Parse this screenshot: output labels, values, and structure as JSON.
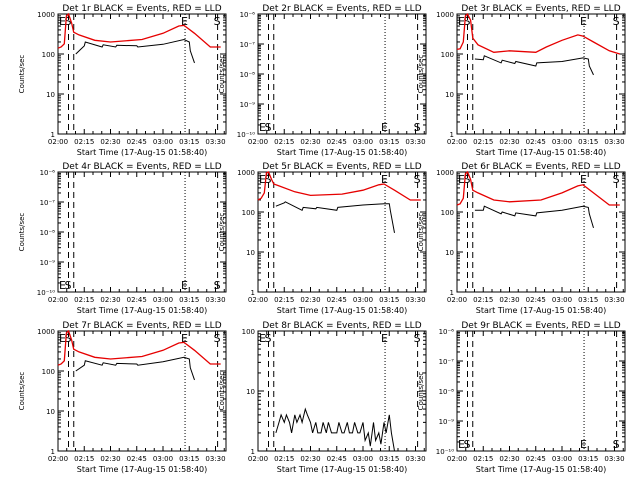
{
  "figure": {
    "xlabel": "Start Time (17-Aug-15 01:58:40)",
    "ylabel": "Counts/sec",
    "x_ticks": [
      "02:00",
      "02:15",
      "02:30",
      "02:45",
      "03:00",
      "03:15",
      "03:30"
    ],
    "colors": {
      "events": "#000000",
      "lld": "#e60000",
      "frame": "#000000"
    }
  },
  "chart_data": [
    {
      "type": "line",
      "title": "Det 1r BLACK = Events, RED = LLD",
      "y_scale": "log",
      "ylim": [
        1,
        1000
      ],
      "y_ticks": [
        {
          "v": 1,
          "t": "1"
        },
        {
          "v": 10,
          "t": "10"
        },
        {
          "v": 100,
          "t": "100"
        },
        {
          "v": 1000,
          "t": "1000"
        }
      ],
      "markers": [
        {
          "label": "E",
          "x": 2.0,
          "style": "dashed"
        },
        {
          "label": "S",
          "x": 2.1,
          "style": "dashed"
        },
        {
          "label": "",
          "x": 2.15,
          "style": "dashed"
        },
        {
          "label": "E",
          "x": 3.21,
          "style": "dotted"
        },
        {
          "label": "S",
          "x": 3.52,
          "style": "dashed"
        }
      ],
      "series": [
        {
          "role": "lld",
          "x": [
            2.0,
            2.03,
            2.06,
            2.08,
            2.1,
            2.13,
            2.15,
            2.2,
            2.35,
            2.5,
            2.8,
            3.0,
            3.15,
            3.2,
            3.3,
            3.45,
            3.55
          ],
          "y": [
            140,
            150,
            180,
            900,
            1000,
            600,
            350,
            300,
            220,
            200,
            230,
            330,
            500,
            520,
            330,
            150,
            150
          ]
        },
        {
          "role": "events",
          "x": [
            2.17,
            2.25,
            2.26,
            2.42,
            2.43,
            2.55,
            2.56,
            2.75,
            2.76,
            3.0,
            3.2,
            3.25,
            3.26,
            3.3
          ],
          "y": [
            100,
            160,
            200,
            150,
            170,
            150,
            165,
            160,
            150,
            175,
            230,
            200,
            120,
            60
          ]
        }
      ]
    },
    {
      "type": "line",
      "title": "Det 2r BLACK = Events, RED = LLD",
      "y_scale": "log",
      "ylim": [
        1e-10,
        1e-06
      ],
      "y_ticks": [
        {
          "v": 1e-10,
          "t": "10⁻¹⁰"
        },
        {
          "v": 1e-09,
          "t": "10⁻⁹"
        },
        {
          "v": 1e-08,
          "t": "10⁻⁸"
        },
        {
          "v": 1e-07,
          "t": "10⁻⁷"
        },
        {
          "v": 1e-06,
          "t": "10⁻⁶"
        }
      ],
      "markers": [
        {
          "label": "E",
          "x": 2.0,
          "style": "dashed"
        },
        {
          "label": "S",
          "x": 2.1,
          "style": "dashed"
        },
        {
          "label": "",
          "x": 2.15,
          "style": "dashed"
        },
        {
          "label": "E",
          "x": 3.21,
          "style": "dotted"
        },
        {
          "label": "S",
          "x": 3.52,
          "style": "dashed"
        }
      ],
      "series": []
    },
    {
      "type": "line",
      "title": "Det 3r BLACK = Events, RED = LLD",
      "y_scale": "log",
      "ylim": [
        1,
        1000
      ],
      "y_ticks": [
        {
          "v": 1,
          "t": "1"
        },
        {
          "v": 10,
          "t": "10"
        },
        {
          "v": 100,
          "t": "100"
        },
        {
          "v": 1000,
          "t": "1000"
        }
      ],
      "markers": [
        {
          "label": "E",
          "x": 2.0,
          "style": "dashed"
        },
        {
          "label": "S",
          "x": 2.1,
          "style": "dashed"
        },
        {
          "label": "",
          "x": 2.15,
          "style": "dashed"
        },
        {
          "label": "E",
          "x": 3.21,
          "style": "dotted"
        },
        {
          "label": "S",
          "x": 3.52,
          "style": "dashed"
        }
      ],
      "series": [
        {
          "role": "lld",
          "x": [
            2.0,
            2.03,
            2.06,
            2.08,
            2.1,
            2.13,
            2.15,
            2.2,
            2.35,
            2.5,
            2.75,
            2.85,
            3.0,
            3.15,
            3.2,
            3.3,
            3.45,
            3.55
          ],
          "y": [
            130,
            135,
            200,
            900,
            1000,
            700,
            250,
            170,
            110,
            120,
            110,
            150,
            220,
            300,
            280,
            200,
            120,
            100
          ]
        },
        {
          "role": "events",
          "x": [
            2.17,
            2.25,
            2.26,
            2.42,
            2.43,
            2.55,
            2.56,
            2.75,
            2.76,
            3.0,
            3.2,
            3.25,
            3.26,
            3.3
          ],
          "y": [
            75,
            72,
            90,
            60,
            70,
            58,
            65,
            50,
            60,
            65,
            80,
            75,
            50,
            30
          ]
        }
      ]
    },
    {
      "type": "line",
      "title": "Det 4r BLACK = Events, RED = LLD",
      "y_scale": "log",
      "ylim": [
        1e-10,
        1e-06
      ],
      "y_ticks": [
        {
          "v": 1e-10,
          "t": "10⁻¹⁰"
        },
        {
          "v": 1e-09,
          "t": "10⁻⁹"
        },
        {
          "v": 1e-08,
          "t": "10⁻⁸"
        },
        {
          "v": 1e-07,
          "t": "10⁻⁷"
        },
        {
          "v": 1e-06,
          "t": "10⁻⁶"
        }
      ],
      "markers": [
        {
          "label": "E",
          "x": 2.0,
          "style": "dashed"
        },
        {
          "label": "S",
          "x": 2.1,
          "style": "dashed"
        },
        {
          "label": "",
          "x": 2.15,
          "style": "dashed"
        },
        {
          "label": "E",
          "x": 3.21,
          "style": "dotted"
        },
        {
          "label": "S",
          "x": 3.52,
          "style": "dashed"
        }
      ],
      "series": []
    },
    {
      "type": "line",
      "title": "Det 5r BLACK = Events, RED = LLD",
      "y_scale": "log",
      "ylim": [
        1,
        1000
      ],
      "y_ticks": [
        {
          "v": 1,
          "t": "1"
        },
        {
          "v": 10,
          "t": "10"
        },
        {
          "v": 100,
          "t": "100"
        },
        {
          "v": 1000,
          "t": "1000"
        }
      ],
      "markers": [
        {
          "label": "E",
          "x": 2.0,
          "style": "dashed"
        },
        {
          "label": "S",
          "x": 2.1,
          "style": "dashed"
        },
        {
          "label": "",
          "x": 2.15,
          "style": "dashed"
        },
        {
          "label": "E",
          "x": 3.21,
          "style": "dotted"
        },
        {
          "label": "S",
          "x": 3.52,
          "style": "dashed"
        }
      ],
      "series": [
        {
          "role": "lld",
          "x": [
            2.0,
            2.03,
            2.06,
            2.08,
            2.1,
            2.13,
            2.15,
            2.2,
            2.35,
            2.5,
            2.8,
            3.0,
            3.15,
            3.2,
            3.3,
            3.45,
            3.55
          ],
          "y": [
            200,
            220,
            300,
            950,
            1000,
            650,
            500,
            450,
            320,
            260,
            280,
            350,
            480,
            500,
            350,
            200,
            200
          ]
        },
        {
          "role": "events",
          "x": [
            2.17,
            2.25,
            2.26,
            2.42,
            2.43,
            2.55,
            2.56,
            2.75,
            2.76,
            3.0,
            3.2,
            3.25,
            3.26,
            3.3
          ],
          "y": [
            140,
            170,
            180,
            110,
            130,
            120,
            130,
            110,
            130,
            150,
            160,
            160,
            110,
            30
          ]
        }
      ]
    },
    {
      "type": "line",
      "title": "Det 6r BLACK = Events, RED = LLD",
      "y_scale": "log",
      "ylim": [
        1,
        1000
      ],
      "y_ticks": [
        {
          "v": 1,
          "t": "1"
        },
        {
          "v": 10,
          "t": "10"
        },
        {
          "v": 100,
          "t": "100"
        },
        {
          "v": 1000,
          "t": "1000"
        }
      ],
      "markers": [
        {
          "label": "E",
          "x": 2.0,
          "style": "dashed"
        },
        {
          "label": "S",
          "x": 2.1,
          "style": "dashed"
        },
        {
          "label": "",
          "x": 2.15,
          "style": "dashed"
        },
        {
          "label": "E",
          "x": 3.21,
          "style": "dotted"
        },
        {
          "label": "S",
          "x": 3.52,
          "style": "dashed"
        }
      ],
      "series": [
        {
          "role": "lld",
          "x": [
            2.0,
            2.03,
            2.06,
            2.08,
            2.1,
            2.13,
            2.15,
            2.2,
            2.35,
            2.5,
            2.8,
            3.0,
            3.15,
            3.2,
            3.3,
            3.45,
            3.55
          ],
          "y": [
            150,
            160,
            220,
            900,
            1000,
            650,
            350,
            300,
            200,
            180,
            200,
            300,
            450,
            480,
            300,
            150,
            150
          ]
        },
        {
          "role": "events",
          "x": [
            2.17,
            2.25,
            2.26,
            2.42,
            2.43,
            2.55,
            2.56,
            2.75,
            2.76,
            3.0,
            3.2,
            3.25,
            3.26,
            3.3
          ],
          "y": [
            110,
            110,
            140,
            90,
            100,
            80,
            95,
            80,
            95,
            110,
            140,
            130,
            90,
            40
          ]
        }
      ]
    },
    {
      "type": "line",
      "title": "Det 7r BLACK = Events, RED = LLD",
      "y_scale": "log",
      "ylim": [
        1,
        1000
      ],
      "y_ticks": [
        {
          "v": 1,
          "t": "1"
        },
        {
          "v": 10,
          "t": "10"
        },
        {
          "v": 100,
          "t": "100"
        },
        {
          "v": 1000,
          "t": "1000"
        }
      ],
      "markers": [
        {
          "label": "E",
          "x": 2.0,
          "style": "dashed"
        },
        {
          "label": "S",
          "x": 2.1,
          "style": "dashed"
        },
        {
          "label": "",
          "x": 2.15,
          "style": "dashed"
        },
        {
          "label": "E",
          "x": 3.21,
          "style": "dotted"
        },
        {
          "label": "S",
          "x": 3.52,
          "style": "dashed"
        }
      ],
      "series": [
        {
          "role": "lld",
          "x": [
            2.0,
            2.03,
            2.06,
            2.08,
            2.1,
            2.13,
            2.15,
            2.2,
            2.35,
            2.5,
            2.8,
            3.0,
            3.15,
            3.2,
            3.3,
            3.45,
            3.55
          ],
          "y": [
            140,
            150,
            180,
            900,
            1000,
            600,
            350,
            300,
            220,
            200,
            230,
            330,
            500,
            520,
            330,
            150,
            150
          ]
        },
        {
          "role": "events",
          "x": [
            2.17,
            2.25,
            2.26,
            2.42,
            2.43,
            2.55,
            2.56,
            2.75,
            2.76,
            3.0,
            3.2,
            3.25,
            3.26,
            3.3
          ],
          "y": [
            100,
            140,
            180,
            140,
            160,
            140,
            155,
            150,
            140,
            170,
            220,
            200,
            120,
            60
          ]
        }
      ]
    },
    {
      "type": "line",
      "title": "Det 8r BLACK = Events, RED = LLD",
      "y_scale": "log",
      "ylim": [
        1,
        100
      ],
      "y_ticks": [
        {
          "v": 1,
          "t": "1"
        },
        {
          "v": 10,
          "t": "10"
        },
        {
          "v": 100,
          "t": "100"
        }
      ],
      "markers": [
        {
          "label": "E",
          "x": 2.0,
          "style": "dashed"
        },
        {
          "label": "S",
          "x": 2.1,
          "style": "dashed"
        },
        {
          "label": "",
          "x": 2.15,
          "style": "dashed"
        },
        {
          "label": "E",
          "x": 3.21,
          "style": "dotted"
        },
        {
          "label": "S",
          "x": 3.52,
          "style": "dashed"
        }
      ],
      "series": [
        {
          "role": "events",
          "x": [
            2.17,
            2.2,
            2.22,
            2.25,
            2.27,
            2.3,
            2.32,
            2.35,
            2.37,
            2.4,
            2.42,
            2.45,
            2.47,
            2.5,
            2.52,
            2.55,
            2.57,
            2.6,
            2.62,
            2.65,
            2.67,
            2.7,
            2.72,
            2.75,
            2.77,
            2.8,
            2.82,
            2.85,
            2.87,
            2.9,
            2.92,
            2.95,
            2.97,
            3.0,
            3.02,
            3.05,
            3.07,
            3.1,
            3.12,
            3.15,
            3.17,
            3.2,
            3.22,
            3.25,
            3.27,
            3.3
          ],
          "y": [
            2,
            3,
            4,
            3,
            4,
            3,
            2,
            4,
            3,
            4,
            3,
            5,
            4,
            3,
            2,
            3,
            2,
            2,
            3,
            2,
            3,
            2,
            2,
            2,
            3,
            2,
            2,
            3,
            2,
            2,
            3,
            2,
            2,
            3,
            1.5,
            2,
            1.2,
            3,
            1.5,
            2,
            1.3,
            3,
            2,
            4,
            2,
            1
          ]
        }
      ]
    },
    {
      "type": "line",
      "title": "Det 9r BLACK = Events, RED = LLD",
      "y_scale": "log",
      "ylim": [
        1e-10,
        1e-06
      ],
      "y_ticks": [
        {
          "v": 1e-10,
          "t": "10⁻¹⁰"
        },
        {
          "v": 1e-09,
          "t": "10⁻⁹"
        },
        {
          "v": 1e-08,
          "t": "10⁻⁸"
        },
        {
          "v": 1e-07,
          "t": "10⁻⁷"
        },
        {
          "v": 1e-06,
          "t": "10⁻⁶"
        }
      ],
      "markers": [
        {
          "label": "E",
          "x": 2.0,
          "style": "dashed"
        },
        {
          "label": "S",
          "x": 2.1,
          "style": "dashed"
        },
        {
          "label": "",
          "x": 2.15,
          "style": "dashed"
        },
        {
          "label": "E",
          "x": 3.21,
          "style": "dotted"
        },
        {
          "label": "S",
          "x": 3.52,
          "style": "dashed"
        }
      ],
      "series": []
    }
  ]
}
